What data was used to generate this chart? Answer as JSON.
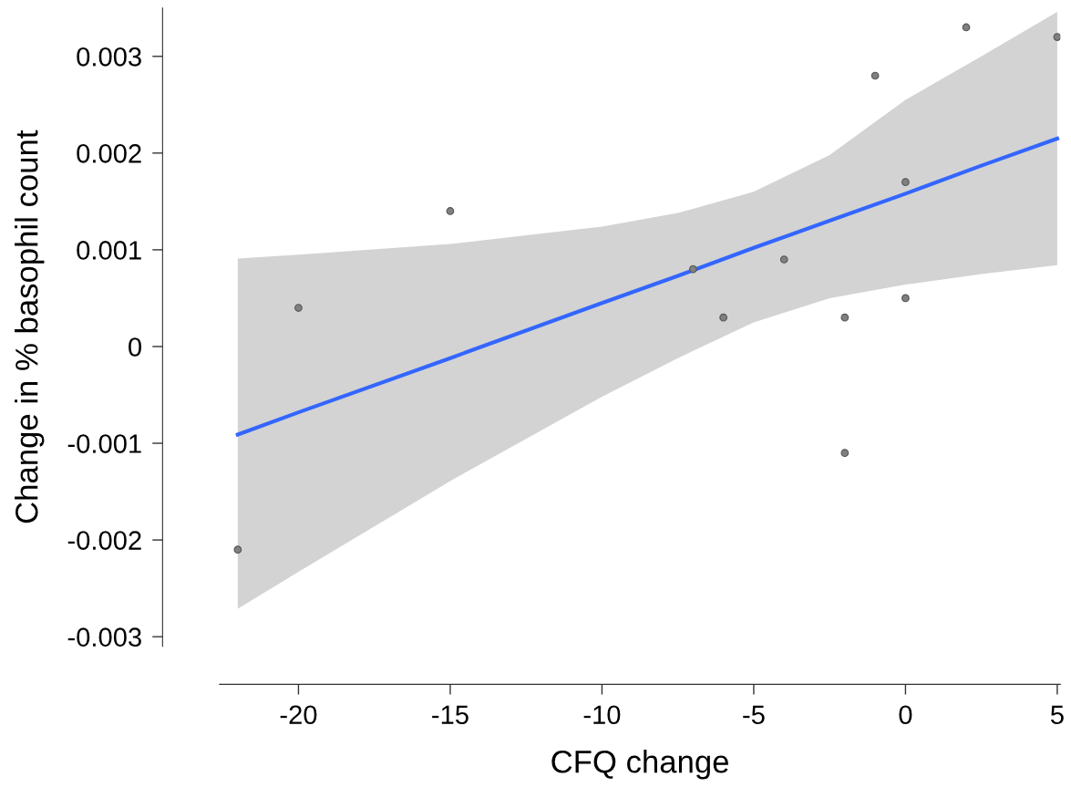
{
  "chart_data": {
    "type": "scatter",
    "xlabel": "CFQ change",
    "ylabel": "Change in % basophil count",
    "series": [
      {
        "type": "scatter",
        "color": "#808080",
        "marker": "circle",
        "x": [
          -22,
          -20,
          -15,
          -7,
          -6,
          -4,
          -2,
          -2,
          -1,
          0,
          0,
          2,
          5
        ],
        "values": [
          -0.0021,
          0.0004,
          0.0014,
          0.0008,
          0.0003,
          0.0009,
          0.0003,
          -0.0011,
          0.0028,
          0.0017,
          0.0005,
          0.0033,
          0.0032
        ]
      },
      {
        "type": "line",
        "color": "#3366ff",
        "line_style": "solid",
        "x": [
          -22,
          -20,
          -15,
          -10,
          -7.5,
          -5,
          -2.5,
          0,
          2.5,
          5
        ],
        "values": [
          -0.00091,
          -0.00068,
          -0.00012,
          0.00045,
          0.00073,
          0.00102,
          0.0013,
          0.00158,
          0.00187,
          0.00215
        ],
        "lower": [
          -0.00271,
          -0.00233,
          -0.00139,
          -0.00052,
          -0.00012,
          0.00025,
          0.0005,
          0.00064,
          0.00075,
          0.00084
        ],
        "upper": [
          0.00091,
          0.00095,
          0.00106,
          0.00124,
          0.00138,
          0.0016,
          0.00198,
          0.00255,
          0.003,
          0.00346
        ]
      }
    ],
    "xlim": [
      -22.6,
      5.1
    ],
    "ylim": [
      -0.0031,
      0.0035
    ],
    "xticks": [
      {
        "value": -20,
        "label": "-20"
      },
      {
        "value": -15,
        "label": "-15"
      },
      {
        "value": -10,
        "label": "-10"
      },
      {
        "value": -5,
        "label": "-5"
      },
      0,
      5
    ],
    "yticks": [
      {
        "value": -0.003,
        "label": "-0.003"
      },
      {
        "value": -0.002,
        "label": "-0.002"
      },
      {
        "value": -0.001,
        "label": "-0.001"
      },
      0,
      0.001,
      0.002,
      0.003
    ],
    "grid": false,
    "legend": false
  }
}
